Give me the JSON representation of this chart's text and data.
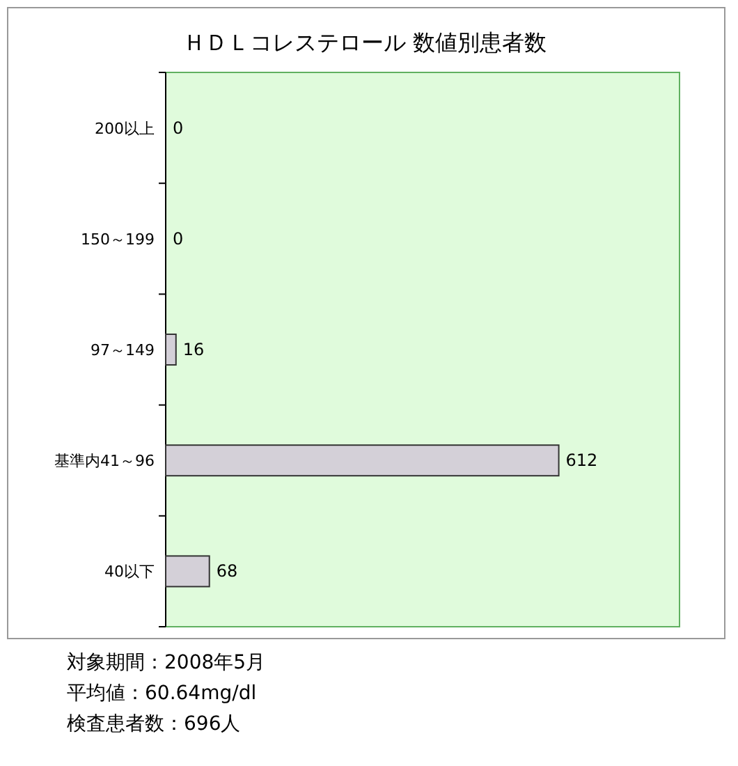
{
  "chart_data": {
    "type": "bar",
    "orientation": "horizontal",
    "title": "ＨＤＬコレステロール 数値別患者数",
    "categories": [
      "200以上",
      "150～199",
      "97～149",
      "基準内41～96",
      "40以下"
    ],
    "values": [
      0,
      0,
      16,
      612,
      68
    ],
    "color": "#d4d0d8",
    "xlim": [
      0,
      800
    ],
    "data_labels": true,
    "annotations": [
      "対象期間：2008年5月",
      "平均値：60.64mg/dl",
      "検査患者数：696人"
    ]
  }
}
